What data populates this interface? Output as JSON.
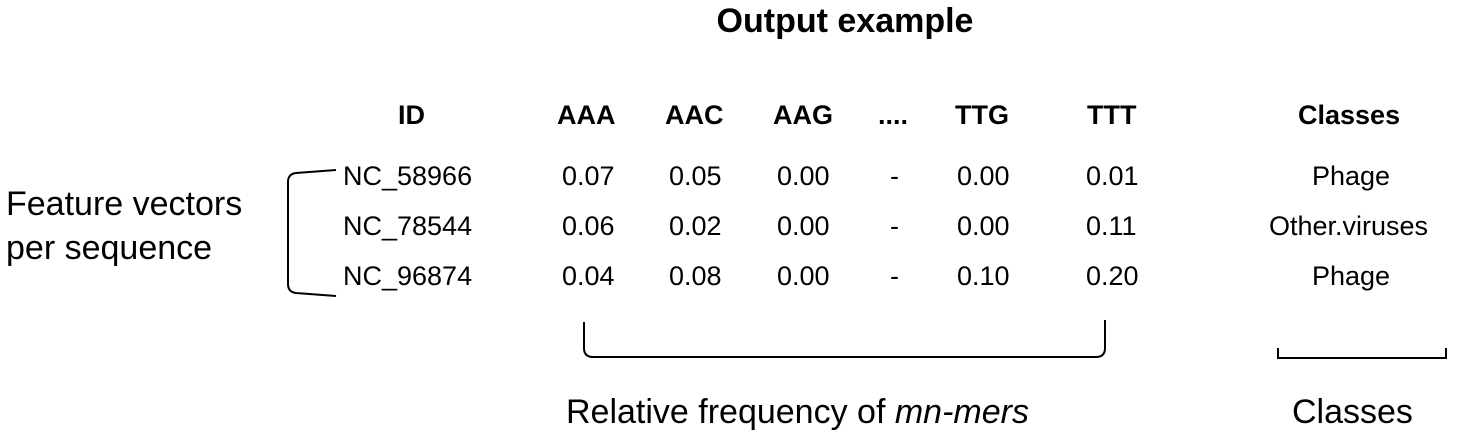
{
  "title": "Output example",
  "table": {
    "id_header": "ID",
    "kmer_headers": [
      "AAA",
      "AAC",
      "AAG",
      "....",
      "TTG",
      "TTT"
    ],
    "class_header": "Classes",
    "rows": [
      {
        "id": "NC_58966",
        "values": [
          "0.07",
          "0.05",
          "0.00",
          "-",
          "0.00",
          "0.01"
        ],
        "class": "Phage"
      },
      {
        "id": "NC_78544",
        "values": [
          "0.06",
          "0.02",
          "0.00",
          "-",
          "0.00",
          "0.11"
        ],
        "class": "Other.viruses"
      },
      {
        "id": "NC_96874",
        "values": [
          "0.04",
          "0.08",
          "0.00",
          "-",
          "0.10",
          "0.20"
        ],
        "class": "Phage"
      }
    ]
  },
  "left_label": {
    "line1": "Feature vectors",
    "line2": "per sequence"
  },
  "bottom_labels": {
    "frequency_prefix": "Relative frequency of ",
    "frequency_term": "mn-mers",
    "classes": "Classes"
  }
}
